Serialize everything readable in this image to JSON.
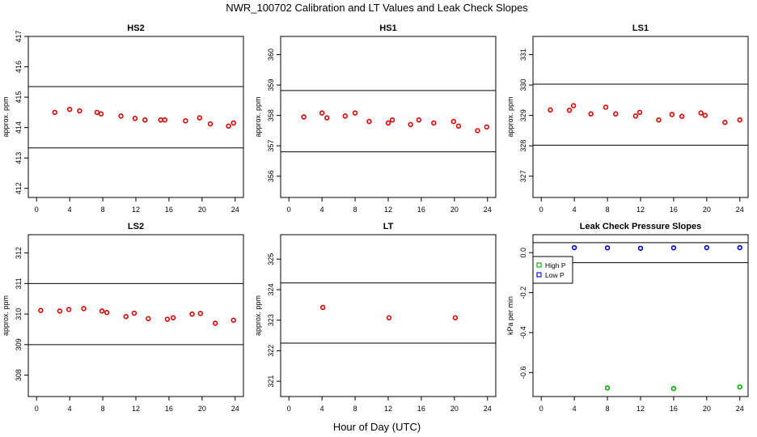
{
  "figure": {
    "title": "NWR_100702  Calibration and LT Values and Leak Check Slopes",
    "xlabel": "Hour of Day (UTC)"
  },
  "chart_data": [
    {
      "type": "scatter",
      "title": "HS2",
      "ylabel": "approx. ppm",
      "xlim": [
        -1,
        25
      ],
      "ylim": [
        411.7,
        417.0
      ],
      "xticks": [
        0,
        4,
        8,
        12,
        16,
        20,
        24
      ],
      "yticks": [
        412,
        413,
        414,
        415,
        416,
        417
      ],
      "hlines": [
        413.33,
        415.35
      ],
      "series": [
        {
          "color": "#dd0000",
          "x": [
            2.2,
            4.0,
            5.2,
            7.3,
            7.8,
            10.2,
            11.9,
            13.1,
            15.0,
            15.5,
            18.0,
            19.7,
            21.0,
            23.2,
            23.8
          ],
          "y": [
            414.5,
            414.6,
            414.55,
            414.5,
            414.45,
            414.38,
            414.3,
            414.25,
            414.25,
            414.25,
            414.22,
            414.32,
            414.12,
            414.05,
            414.15
          ]
        }
      ]
    },
    {
      "type": "scatter",
      "title": "HS1",
      "ylabel": "approx. ppm",
      "xlim": [
        -1,
        25
      ],
      "ylim": [
        355.3,
        360.6
      ],
      "xticks": [
        0,
        4,
        8,
        12,
        16,
        20,
        24
      ],
      "yticks": [
        356,
        357,
        358,
        359,
        360
      ],
      "hlines": [
        356.8,
        358.82
      ],
      "series": [
        {
          "color": "#dd0000",
          "x": [
            1.8,
            4.0,
            4.6,
            6.8,
            8.0,
            9.7,
            12.0,
            12.5,
            14.7,
            15.7,
            17.5,
            19.9,
            20.5,
            22.8,
            23.9
          ],
          "y": [
            357.95,
            358.08,
            357.92,
            357.98,
            358.08,
            357.8,
            357.75,
            357.85,
            357.7,
            357.85,
            357.75,
            357.8,
            357.65,
            357.5,
            357.62
          ]
        }
      ]
    },
    {
      "type": "scatter",
      "title": "LS1",
      "ylabel": "approx. ppm",
      "xlim": [
        -1,
        25
      ],
      "ylim": [
        326.3,
        331.6
      ],
      "xticks": [
        0,
        4,
        8,
        12,
        16,
        20,
        24
      ],
      "yticks": [
        327,
        328,
        329,
        330,
        331
      ],
      "hlines": [
        328.02,
        330.03
      ],
      "series": [
        {
          "color": "#dd0000",
          "x": [
            1.1,
            3.4,
            3.9,
            6.0,
            7.8,
            9.0,
            11.4,
            11.9,
            14.2,
            15.8,
            17.0,
            19.3,
            19.8,
            22.2,
            24.0
          ],
          "y": [
            329.18,
            329.17,
            329.32,
            329.05,
            329.27,
            329.05,
            328.98,
            329.1,
            328.85,
            329.03,
            328.97,
            329.08,
            329.0,
            328.77,
            328.85
          ]
        }
      ]
    },
    {
      "type": "scatter",
      "title": "LS2",
      "ylabel": "approx. ppm",
      "xlim": [
        -1,
        25
      ],
      "ylim": [
        307.3,
        312.6
      ],
      "xticks": [
        0,
        4,
        8,
        12,
        16,
        20,
        24
      ],
      "yticks": [
        308,
        309,
        310,
        311,
        312
      ],
      "hlines": [
        309.0,
        311.0
      ],
      "series": [
        {
          "color": "#dd0000",
          "x": [
            0.5,
            2.8,
            3.9,
            5.7,
            7.9,
            8.5,
            10.8,
            11.8,
            13.5,
            15.8,
            16.5,
            18.8,
            19.8,
            21.6,
            23.8
          ],
          "y": [
            310.12,
            310.1,
            310.15,
            310.18,
            310.1,
            310.05,
            309.92,
            310.03,
            309.85,
            309.83,
            309.88,
            310.0,
            310.02,
            309.7,
            309.8
          ]
        }
      ]
    },
    {
      "type": "scatter",
      "title": "LT",
      "ylabel": "approx. ppm",
      "xlim": [
        -1,
        25
      ],
      "ylim": [
        320.5,
        325.8
      ],
      "xticks": [
        0,
        4,
        8,
        12,
        16,
        20,
        24
      ],
      "yticks": [
        321,
        322,
        323,
        324,
        325
      ],
      "hlines": [
        322.25,
        324.22
      ],
      "series": [
        {
          "color": "#dd0000",
          "x": [
            4.1,
            12.1,
            20.1
          ],
          "y": [
            323.42,
            323.08,
            323.08
          ]
        }
      ]
    },
    {
      "type": "scatter",
      "title": "Leak Check Pressure Slopes",
      "ylabel": "kPa per min",
      "xlim": [
        -1,
        25
      ],
      "ylim": [
        -0.72,
        0.09
      ],
      "xticks": [
        0,
        4,
        8,
        12,
        16,
        20,
        24
      ],
      "yticks": [
        0.0,
        -0.2,
        -0.4,
        -0.6
      ],
      "ytick_labels": [
        "0.0",
        "-0.2",
        "-0.4",
        "-0.6"
      ],
      "hlines": [
        -0.05,
        0.05
      ],
      "legend": {
        "position": "top-left",
        "entries": [
          {
            "name": "High P",
            "color": "#00aa00"
          },
          {
            "name": "Low P",
            "color": "#0000cc"
          }
        ]
      },
      "series": [
        {
          "name": "High P",
          "color": "#00aa00",
          "x": [
            8.0,
            16.0,
            24.0
          ],
          "y": [
            -0.677,
            -0.68,
            -0.672
          ]
        },
        {
          "name": "Low P",
          "color": "#0000cc",
          "x": [
            4.0,
            8.0,
            12.0,
            16.0,
            20.0,
            24.0
          ],
          "y": [
            0.025,
            0.024,
            0.022,
            0.024,
            0.025,
            0.025
          ]
        }
      ]
    }
  ]
}
